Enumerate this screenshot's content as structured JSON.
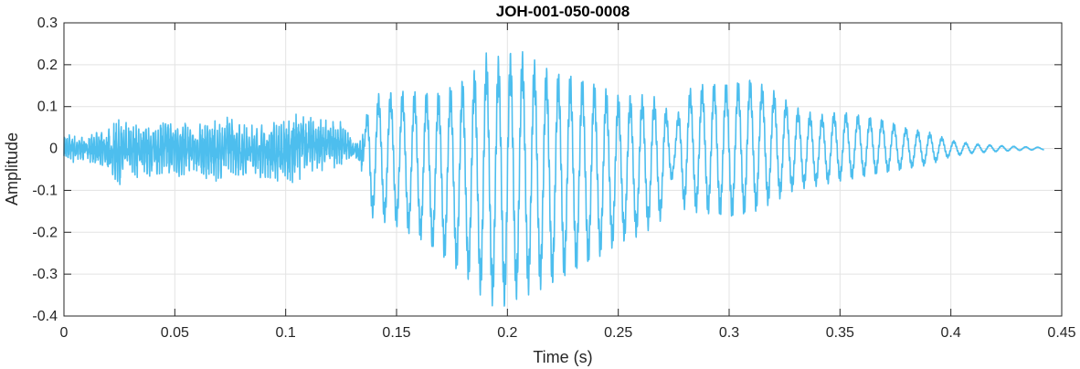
{
  "chart_data": {
    "type": "line",
    "title": "JOH-001-050-0008",
    "xlabel": "Time (s)",
    "ylabel": "Amplitude",
    "xlim": [
      0,
      0.45
    ],
    "ylim": [
      -0.4,
      0.3
    ],
    "xticks": [
      0,
      0.05,
      0.1,
      0.15,
      0.2,
      0.25,
      0.3,
      0.35,
      0.4,
      0.45
    ],
    "xtick_labels": [
      "0",
      "0.05",
      "0.1",
      "0.15",
      "0.2",
      "0.25",
      "0.3",
      "0.35",
      "0.4",
      "0.45"
    ],
    "yticks": [
      0.3,
      0.2,
      0.1,
      0,
      -0.1,
      -0.2,
      -0.3,
      -0.4
    ],
    "ytick_labels": [
      "0.3",
      "0.2",
      "0.1",
      "0",
      "-0.1",
      "-0.2",
      "-0.3",
      "-0.4"
    ],
    "grid": true,
    "line_color": "#4DBEEE",
    "series": [
      {
        "x": [
          0,
          0.01,
          0.02,
          0.025,
          0.03,
          0.04,
          0.045,
          0.05,
          0.06,
          0.07,
          0.075,
          0.08,
          0.09,
          0.1,
          0.105,
          0.11,
          0.12,
          0.125,
          0.13,
          0.133,
          0.136,
          0.138,
          0.14,
          0.15,
          0.16,
          0.17,
          0.18,
          0.185,
          0.19,
          0.195,
          0.2,
          0.205,
          0.21,
          0.22,
          0.23,
          0.24,
          0.25,
          0.26,
          0.27,
          0.275,
          0.28,
          0.29,
          0.3,
          0.31,
          0.32,
          0.33,
          0.34,
          0.35,
          0.36,
          0.37,
          0.38,
          0.39,
          0.4,
          0.41,
          0.42,
          0.43,
          0.442
        ],
        "upper": [
          0.04,
          0.03,
          0.05,
          0.07,
          0.06,
          0.06,
          0.07,
          0.07,
          0.06,
          0.07,
          0.08,
          0.06,
          0.06,
          0.07,
          0.1,
          0.08,
          0.07,
          0.07,
          0.02,
          0.02,
          0.06,
          0.14,
          0.13,
          0.14,
          0.14,
          0.14,
          0.17,
          0.19,
          0.23,
          0.22,
          0.23,
          0.24,
          0.22,
          0.19,
          0.18,
          0.16,
          0.13,
          0.13,
          0.12,
          0.05,
          0.14,
          0.16,
          0.16,
          0.17,
          0.14,
          0.1,
          0.08,
          0.09,
          0.08,
          0.07,
          0.05,
          0.04,
          0.02,
          0.012,
          0.008,
          0.005,
          0.003
        ],
        "lower": [
          -0.04,
          -0.03,
          -0.06,
          -0.09,
          -0.07,
          -0.07,
          -0.06,
          -0.07,
          -0.07,
          -0.08,
          -0.06,
          -0.07,
          -0.07,
          -0.09,
          -0.08,
          -0.06,
          -0.05,
          -0.05,
          -0.02,
          -0.04,
          -0.09,
          -0.16,
          -0.17,
          -0.19,
          -0.22,
          -0.26,
          -0.31,
          -0.33,
          -0.37,
          -0.38,
          -0.38,
          -0.36,
          -0.35,
          -0.33,
          -0.3,
          -0.27,
          -0.23,
          -0.21,
          -0.17,
          -0.06,
          -0.15,
          -0.16,
          -0.17,
          -0.16,
          -0.13,
          -0.1,
          -0.09,
          -0.08,
          -0.07,
          -0.06,
          -0.05,
          -0.04,
          -0.02,
          -0.012,
          -0.008,
          -0.005,
          -0.003
        ]
      }
    ]
  }
}
